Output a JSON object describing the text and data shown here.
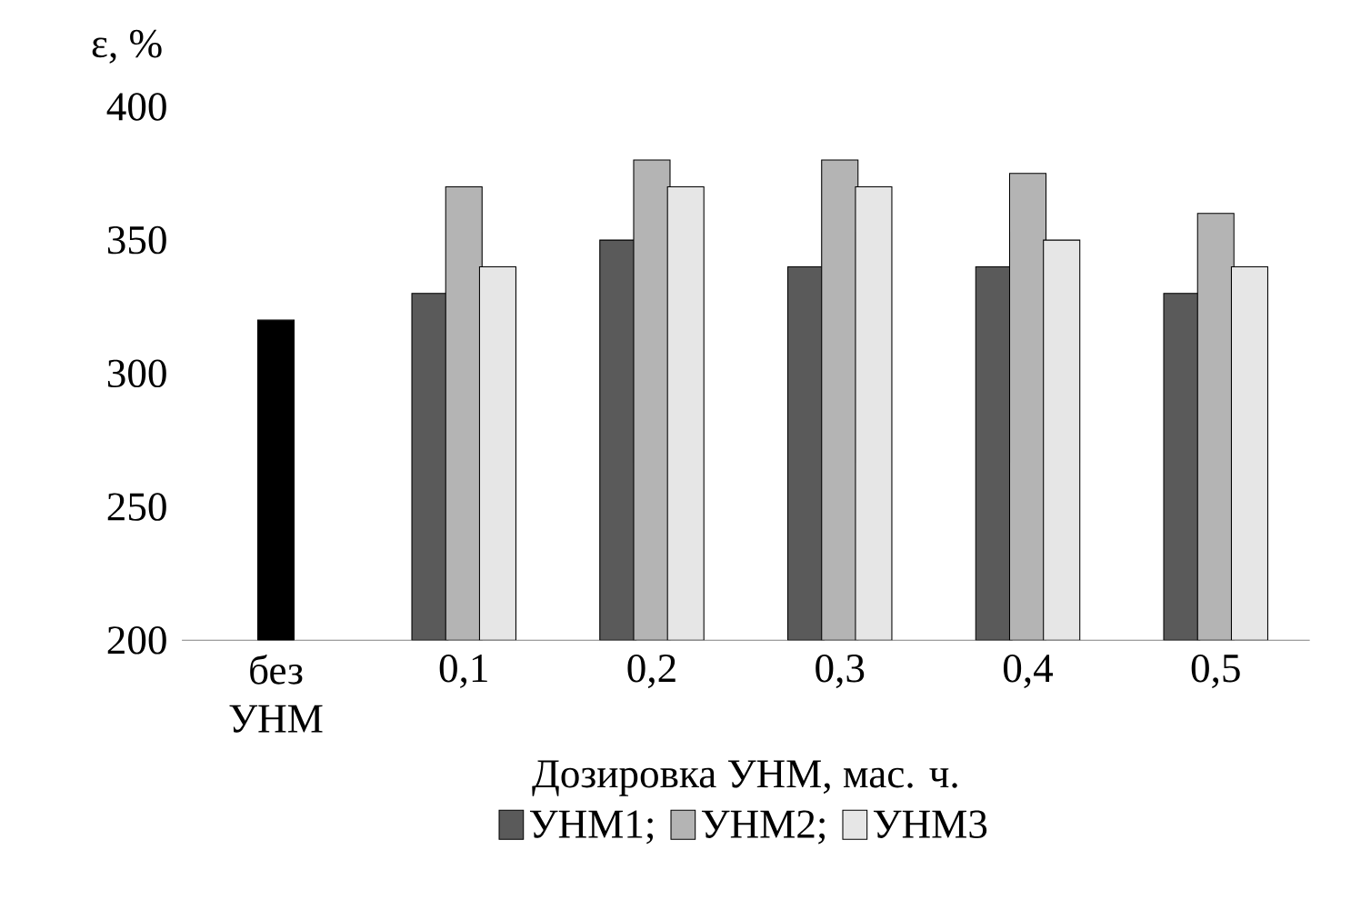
{
  "chart_data": {
    "type": "bar",
    "xlabel": "Дозировка УНМ, мас. ч.",
    "ylabel": "ε, %",
    "categories": [
      "без УНМ",
      "0,1",
      "0,2",
      "0,3",
      "0,4",
      "0,5"
    ],
    "series": [
      {
        "name": "УНМ1;",
        "color": "#5a5a5a",
        "values": [
          null,
          330,
          350,
          340,
          340,
          330
        ]
      },
      {
        "name": "УНМ2;",
        "color": "#b4b4b4",
        "values": [
          null,
          370,
          380,
          380,
          375,
          360
        ]
      },
      {
        "name": "УНМ3",
        "color": "#e6e6e6",
        "values": [
          null,
          340,
          370,
          370,
          350,
          340
        ]
      },
      {
        "color": "#000000",
        "values": [
          320,
          null,
          null,
          null,
          null,
          null
        ]
      }
    ],
    "ylim": [
      200,
      400
    ],
    "yticks": [
      200,
      250,
      300,
      350,
      400
    ],
    "legend": "bottom"
  }
}
